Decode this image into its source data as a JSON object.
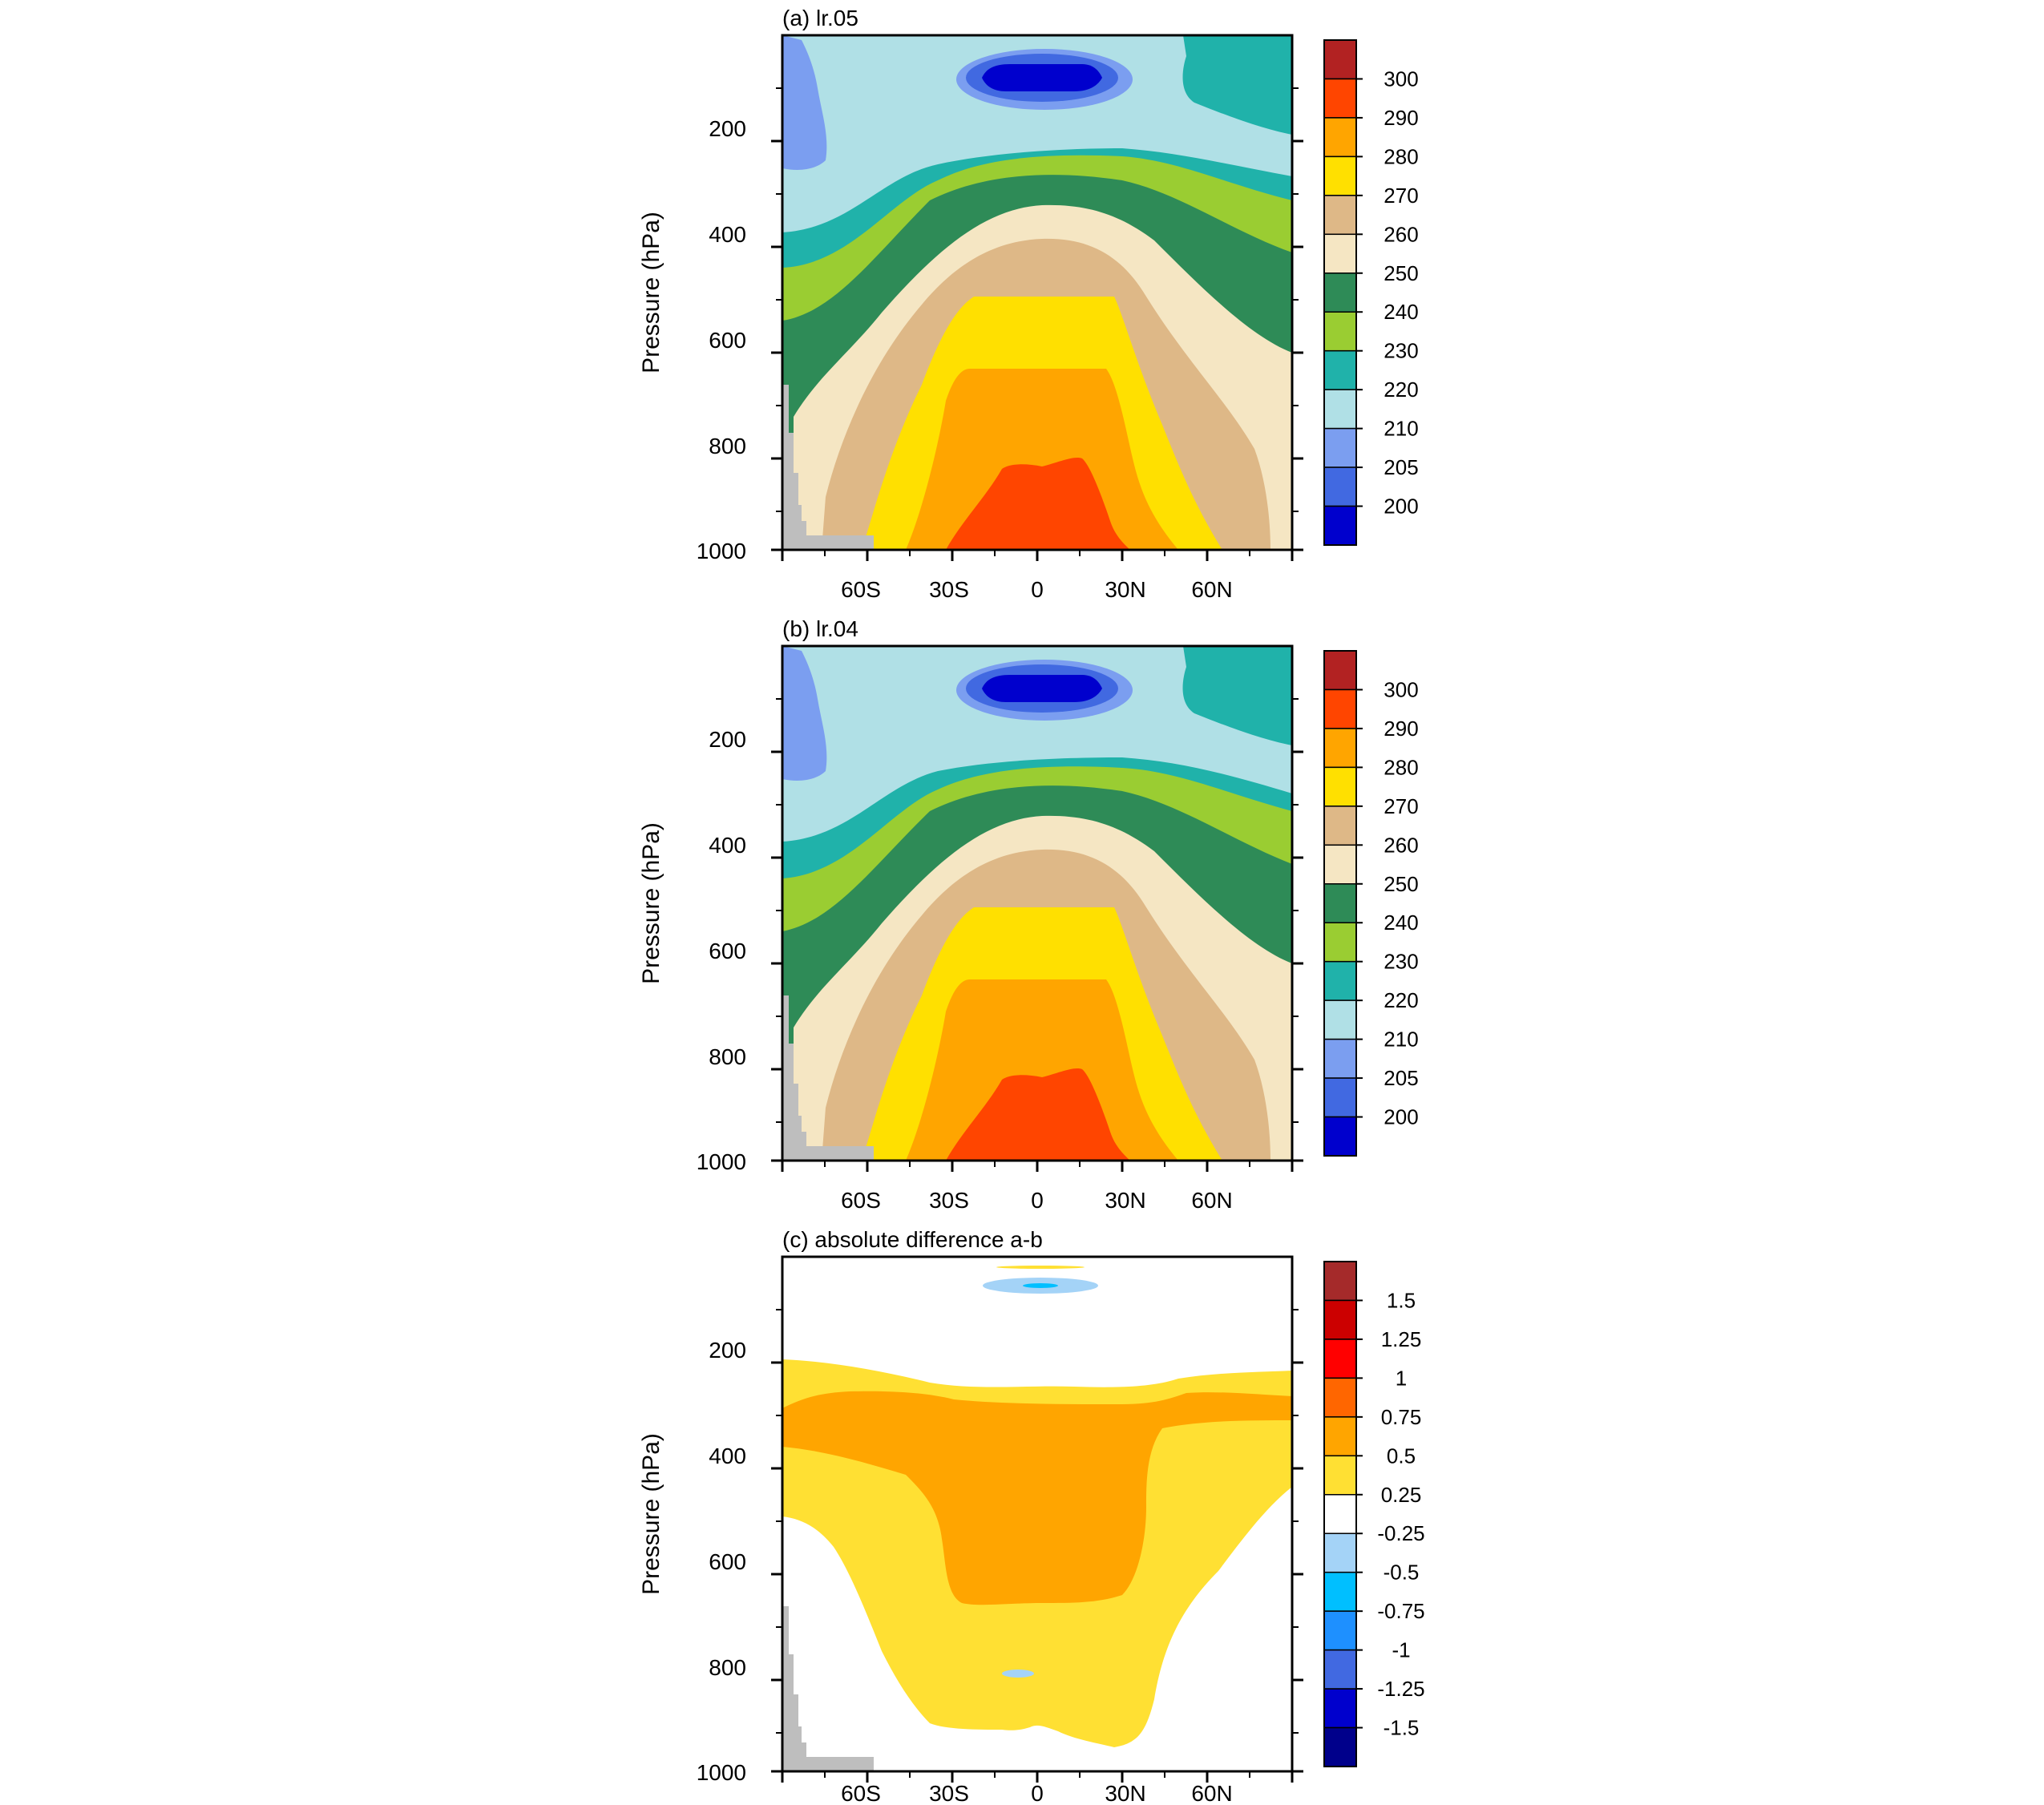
{
  "chart_data": [
    {
      "type": "heatmap",
      "title": "(a) lr.05",
      "ylabel": "Pressure (hPa)",
      "x_ticks": [
        "60S",
        "30S",
        "0",
        "30N",
        "60N"
      ],
      "y_ticks": [
        "200",
        "400",
        "600",
        "800",
        "1000"
      ],
      "x_range": [
        -90,
        90
      ],
      "y_range": [
        30,
        1000
      ],
      "y_direction": "reversed",
      "colorbar_labels": [
        "300",
        "290",
        "280",
        "270",
        "260",
        "250",
        "240",
        "230",
        "220",
        "210",
        "205",
        "200"
      ],
      "colorbar_colors": [
        "#B22222",
        "#FF4500",
        "#FFA500",
        "#FFE000",
        "#DEB887",
        "#F5E6C3",
        "#2E8B57",
        "#9ACD32",
        "#20B2AA",
        "#B0E0E6",
        "#7B9EF0",
        "#4169E1",
        "#0000CD"
      ],
      "contour_levels": [
        200,
        205,
        210,
        220,
        230,
        240,
        250,
        260,
        270,
        280,
        290,
        300
      ],
      "pattern": "zonal-mean temperature; warmest (>290) near surface at the equator, coldest (<200) near 100 hPa over the equator"
    },
    {
      "type": "heatmap",
      "title": "(b) lr.04",
      "ylabel": "Pressure (hPa)",
      "x_ticks": [
        "60S",
        "30S",
        "0",
        "30N",
        "60N"
      ],
      "y_ticks": [
        "200",
        "400",
        "600",
        "800",
        "1000"
      ],
      "x_range": [
        -90,
        90
      ],
      "y_range": [
        30,
        1000
      ],
      "y_direction": "reversed",
      "colorbar_labels": [
        "300",
        "290",
        "280",
        "270",
        "260",
        "250",
        "240",
        "230",
        "220",
        "210",
        "205",
        "200"
      ],
      "colorbar_colors": [
        "#B22222",
        "#FF4500",
        "#FFA500",
        "#FFE000",
        "#DEB887",
        "#F5E6C3",
        "#2E8B57",
        "#9ACD32",
        "#20B2AA",
        "#B0E0E6",
        "#7B9EF0",
        "#4169E1",
        "#0000CD"
      ],
      "contour_levels": [
        200,
        205,
        210,
        220,
        230,
        240,
        250,
        260,
        270,
        280,
        290,
        300
      ],
      "pattern": "nearly identical to (a)"
    },
    {
      "type": "heatmap",
      "title": "(c) absolute difference a-b",
      "ylabel": "Pressure (hPa)",
      "x_ticks": [
        "60S",
        "30S",
        "0",
        "30N",
        "60N"
      ],
      "y_ticks": [
        "200",
        "400",
        "600",
        "800",
        "1000"
      ],
      "x_range": [
        -90,
        90
      ],
      "y_range": [
        30,
        1000
      ],
      "y_direction": "reversed",
      "colorbar_labels": [
        "1.5",
        "1.25",
        "1",
        "0.75",
        "0.5",
        "0.25",
        "-0.25",
        "-0.5",
        "-0.75",
        "-1",
        "-1.25",
        "-1.5"
      ],
      "colorbar_colors": [
        "#A52A2A",
        "#CC0000",
        "#FF0000",
        "#FF6600",
        "#FFA500",
        "#FFE033",
        "#FFFFFF",
        "#A4D3F7",
        "#00BFFF",
        "#1E90FF",
        "#4169E1",
        "#0000CD",
        "#00008B"
      ],
      "contour_levels": [
        -1.5,
        -1.25,
        -1,
        -0.75,
        -0.5,
        -0.25,
        0.25,
        0.5,
        0.75,
        1,
        1.25,
        1.5
      ],
      "pattern": "positive 0.25-0.75 in the upper troposphere, 0.5-0.75 core over the tropics at 250-550 hPa; small negative spots near 100 and 850 hPa"
    }
  ],
  "colors": {
    "missing": "#BEBEBE",
    "frame": "#000000"
  }
}
